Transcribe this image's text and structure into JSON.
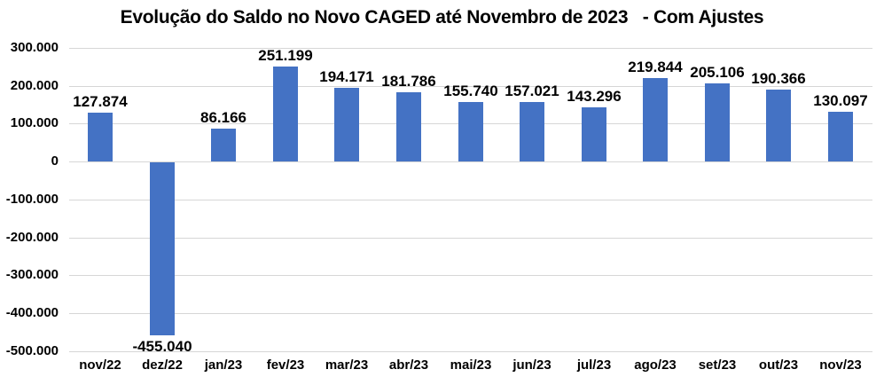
{
  "chart_data": {
    "type": "bar",
    "title": "Evolução do Saldo no Novo CAGED até Novembro de 2023   - Com Ajustes",
    "xlabel": "",
    "ylabel": "",
    "categories": [
      "nov/22",
      "dez/22",
      "jan/23",
      "fev/23",
      "mar/23",
      "abr/23",
      "mai/23",
      "jun/23",
      "jul/23",
      "ago/23",
      "set/23",
      "out/23",
      "nov/23"
    ],
    "values": [
      127874,
      -455040,
      86166,
      251199,
      194171,
      181786,
      155740,
      157021,
      143296,
      219844,
      205106,
      190366,
      130097
    ],
    "value_labels": [
      "127.874",
      "-455.040",
      "86.166",
      "251.199",
      "194.171",
      "181.786",
      "155.740",
      "157.021",
      "143.296",
      "219.844",
      "205.106",
      "190.366",
      "130.097"
    ],
    "y_axis": {
      "min": -500000,
      "max": 300000,
      "grid": true,
      "ticks": [
        {
          "value": 300000,
          "label": "300.000"
        },
        {
          "value": 200000,
          "label": "200.000"
        },
        {
          "value": 100000,
          "label": "100.000"
        },
        {
          "value": 0,
          "label": "0"
        },
        {
          "value": -100000,
          "label": "-100.000"
        },
        {
          "value": -200000,
          "label": "-200.000"
        },
        {
          "value": -300000,
          "label": "-300.000"
        },
        {
          "value": -400000,
          "label": "-400.000"
        },
        {
          "value": -500000,
          "label": "-500.000"
        }
      ]
    },
    "legend": "none",
    "colors": {
      "bar": "#4472C4",
      "gridline": "#D6D6D6",
      "text": "#000000",
      "background": "#FFFFFF"
    }
  }
}
